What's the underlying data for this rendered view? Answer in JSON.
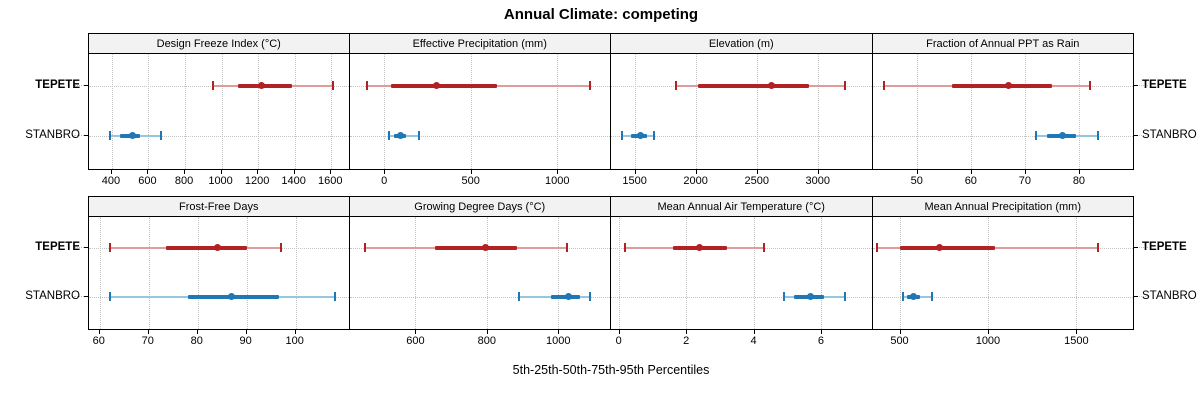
{
  "colors": {
    "tepete": "#b22222",
    "tepete_light": "#de9d9d",
    "stanbro": "#1f77b4",
    "stanbro_light": "#96c6e0",
    "strip_bg": "#f2f2f2",
    "grid": "#c4c4c4",
    "border": "#000000"
  },
  "chart_data": {
    "type": "dotplot",
    "title": "Annual Climate: competing",
    "xlabel": "5th-25th-50th-75th-95th Percentiles",
    "groups": [
      "TEPETE",
      "STANBRO"
    ],
    "percentiles": [
      5,
      25,
      50,
      75,
      95
    ],
    "legend_position": "none",
    "grid": "dotted",
    "panels": [
      {
        "title": "Design Freeze Index (°C)",
        "row": 0,
        "col": 0,
        "xlim": [
          280,
          1700
        ],
        "ticks": [
          400,
          600,
          800,
          1000,
          1200,
          1400,
          1600
        ],
        "series": [
          {
            "name": "TEPETE",
            "values": [
              955,
              1090,
              1220,
              1385,
              1610
            ]
          },
          {
            "name": "STANBRO",
            "values": [
              390,
              445,
              515,
              555,
              670
            ]
          }
        ]
      },
      {
        "title": "Effective Precipitation (mm)",
        "row": 0,
        "col": 1,
        "xlim": [
          -195,
          1305
        ],
        "ticks": [
          0,
          500,
          1000
        ],
        "series": [
          {
            "name": "TEPETE",
            "values": [
              -100,
              40,
              300,
              650,
              1190
            ]
          },
          {
            "name": "STANBRO",
            "values": [
              30,
              55,
              95,
              125,
              200
            ]
          }
        ]
      },
      {
        "title": "Elevation (m)",
        "row": 0,
        "col": 2,
        "xlim": [
          1315,
          3440
        ],
        "ticks": [
          1500,
          2000,
          2500,
          3000
        ],
        "series": [
          {
            "name": "TEPETE",
            "values": [
              1840,
              2020,
              2620,
              2930,
              3220
            ]
          },
          {
            "name": "STANBRO",
            "values": [
              1400,
              1470,
              1550,
              1600,
              1660
            ]
          }
        ]
      },
      {
        "title": "Fraction of Annual PPT as Rain",
        "row": 0,
        "col": 3,
        "xlim": [
          42,
          90
        ],
        "ticks": [
          50,
          60,
          70,
          80
        ],
        "series": [
          {
            "name": "TEPETE",
            "values": [
              44,
              56.5,
              67,
              75,
              82
            ]
          },
          {
            "name": "STANBRO",
            "values": [
              72,
              74,
              77,
              79.5,
              83.5
            ]
          }
        ]
      },
      {
        "title": "Frost-Free Days",
        "row": 1,
        "col": 0,
        "xlim": [
          58,
          111
        ],
        "ticks": [
          60,
          70,
          80,
          90,
          100
        ],
        "series": [
          {
            "name": "TEPETE",
            "values": [
              62,
              73.5,
              84,
              90,
              97
            ]
          },
          {
            "name": "STANBRO",
            "values": [
              62,
              78,
              87,
              96.5,
              108
            ]
          }
        ]
      },
      {
        "title": "Growing Degree Days (°C)",
        "row": 1,
        "col": 1,
        "xlim": [
          418,
          1145
        ],
        "ticks": [
          600,
          800,
          1000
        ],
        "series": [
          {
            "name": "TEPETE",
            "values": [
              460,
              655,
              795,
              885,
              1025
            ]
          },
          {
            "name": "STANBRO",
            "values": [
              890,
              980,
              1030,
              1060,
              1090
            ]
          }
        ]
      },
      {
        "title": "Mean Annual Air Temperature (°C)",
        "row": 1,
        "col": 2,
        "xlim": [
          -0.2,
          7.5
        ],
        "ticks": [
          0,
          2,
          4,
          6
        ],
        "series": [
          {
            "name": "TEPETE",
            "values": [
              0.2,
              1.6,
              2.4,
              3.2,
              4.3
            ]
          },
          {
            "name": "STANBRO",
            "values": [
              4.9,
              5.2,
              5.7,
              6.1,
              6.7
            ]
          }
        ]
      },
      {
        "title": "Mean Annual Precipitation (mm)",
        "row": 1,
        "col": 3,
        "xlim": [
          353,
          1820
        ],
        "ticks": [
          500,
          1000,
          1500
        ],
        "series": [
          {
            "name": "TEPETE",
            "values": [
              375,
              505,
              725,
              1040,
              1620
            ]
          },
          {
            "name": "STANBRO",
            "values": [
              520,
              545,
              580,
              615,
              685
            ]
          }
        ]
      }
    ]
  }
}
